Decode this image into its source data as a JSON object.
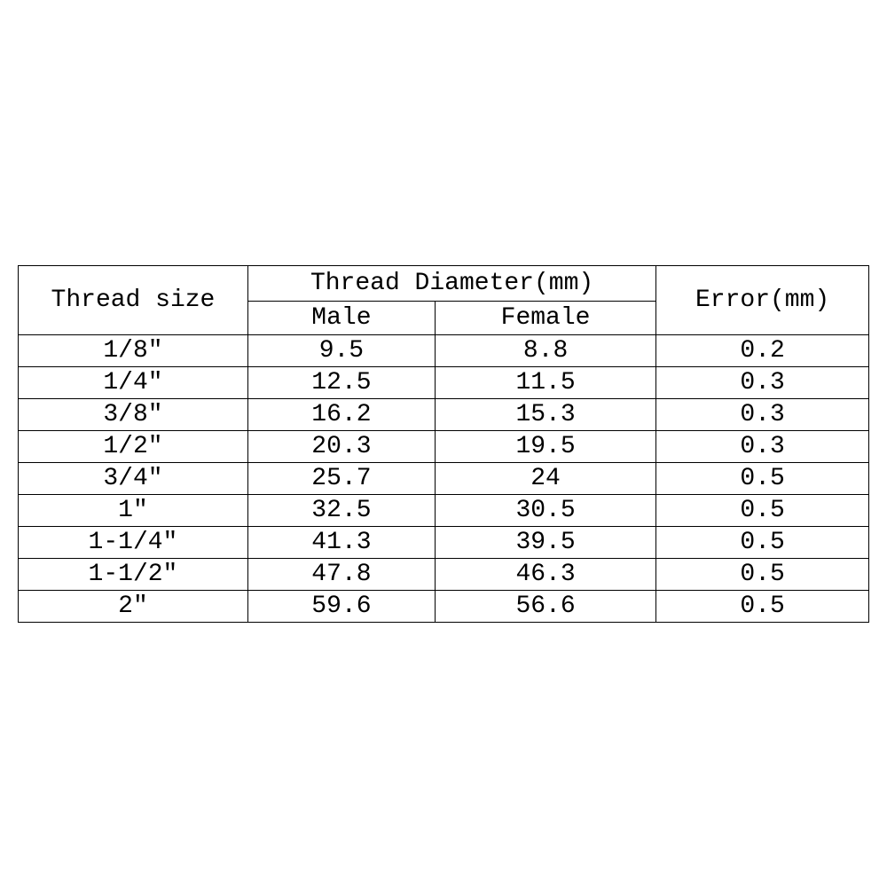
{
  "table": {
    "headers": {
      "thread_size": "Thread size",
      "thread_diameter": "Thread Diameter(mm)",
      "male": "Male",
      "female": "Female",
      "error": "Error(mm)"
    },
    "rows": [
      {
        "size": "1/8″",
        "male": "9.5",
        "female": "8.8",
        "error": "0.2"
      },
      {
        "size": "1/4″",
        "male": "12.5",
        "female": "11.5",
        "error": "0.3"
      },
      {
        "size": "3/8″",
        "male": "16.2",
        "female": "15.3",
        "error": "0.3"
      },
      {
        "size": "1/2″",
        "male": "20.3",
        "female": "19.5",
        "error": "0.3"
      },
      {
        "size": "3/4″",
        "male": "25.7",
        "female": "24",
        "error": "0.5"
      },
      {
        "size": "1″",
        "male": "32.5",
        "female": "30.5",
        "error": "0.5"
      },
      {
        "size": "1-1/4″",
        "male": "41.3",
        "female": "39.5",
        "error": "0.5"
      },
      {
        "size": "1-1/2″",
        "male": "47.8",
        "female": "46.3",
        "error": "0.5"
      },
      {
        "size": "2″",
        "male": "59.6",
        "female": "56.6",
        "error": "0.5"
      }
    ],
    "styles": {
      "border_color": "#000000",
      "background_color": "#ffffff",
      "text_color": "#000000",
      "header_fontsize": 28,
      "cell_fontsize": 28,
      "border_width": 1.5
    }
  }
}
